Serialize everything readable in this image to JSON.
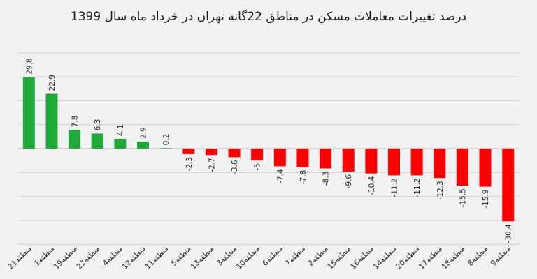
{
  "chart_data": {
    "type": "bar",
    "title": "درصد تغییرات معاملات مسکن در مناطق 22گانه تهران در خرداد ماه سال 1399",
    "xlabel": "",
    "ylabel": "",
    "categories": [
      "منطقه21",
      "منطقه1",
      "منطقه19",
      "منطقه22",
      "منطقه4",
      "منطقه12",
      "منطقه11",
      "منطقه5",
      "منطقه13",
      "منطقه3",
      "منطقه10",
      "منطقه6",
      "منطقه7",
      "منطقه2",
      "منطقه15",
      "منطقه16",
      "منطقه14",
      "منطقه20",
      "منطقه17",
      "منطقه18",
      "منطقه8",
      "منطقه9"
    ],
    "value_labels": [
      "29.8",
      "22.9",
      "7.8",
      "6.3",
      "4.1",
      "2.9",
      "0.2",
      "-2.3",
      "-2.7",
      "-3.6",
      "-5",
      "-7.4",
      "-7.8",
      "-8.3",
      "-9.6",
      "-10.4",
      "-11.2",
      "-11.2",
      "-12.3",
      "-15.5",
      "-15.9",
      "-30.4"
    ],
    "values": [
      29.8,
      22.9,
      7.8,
      6.3,
      4.1,
      2.9,
      0.2,
      -2.3,
      -2.7,
      -3.6,
      -5,
      -7.4,
      -7.8,
      -8.3,
      -9.6,
      -10.4,
      -11.2,
      -11.2,
      -12.3,
      -15.5,
      -15.9,
      -30.4
    ],
    "ylim": [
      -40,
      40
    ],
    "grid": true,
    "legend": "none",
    "colors": {
      "positive": "#1faa3a",
      "negative": "#ff0000",
      "grid": "#d0d0d0",
      "background": "#f2f2f2"
    }
  }
}
